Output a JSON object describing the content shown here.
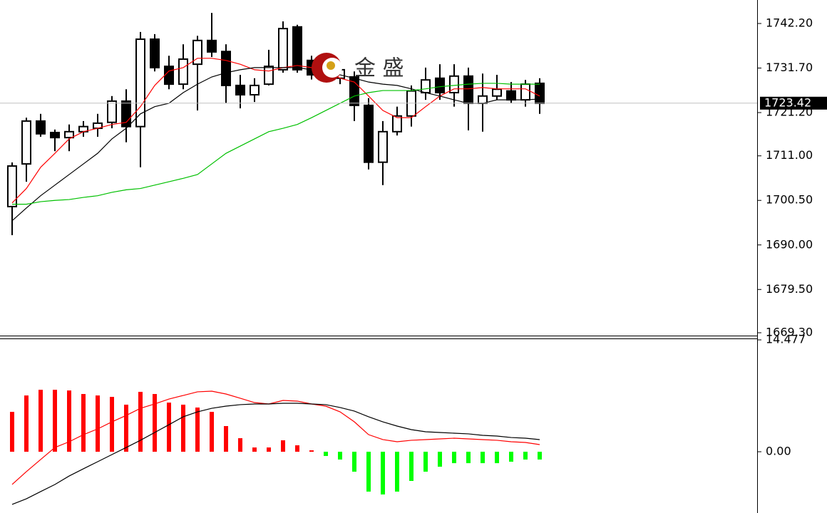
{
  "watermark": "金 盛",
  "chart_data": [
    {
      "type": "candlestick",
      "open": [
        1699.04,
        1709.1,
        1719.2,
        1716.5,
        1715.3,
        1716.7,
        1717.5,
        1718.9,
        1723.9,
        1717.9,
        1738.5,
        1732.1,
        1727.9,
        1732.6,
        1738.2,
        1735.6,
        1727.6,
        1725.4,
        1727.9,
        1731.3,
        1741.4,
        1733.5,
        1732.6,
        1729.3,
        1729.6,
        1722.9,
        1709.5,
        1716.7,
        1720.4,
        1725.9,
        1729.3,
        1725.9,
        1729.8,
        1723.4,
        1725.1,
        1726.3,
        1724.2,
        1728.1
      ],
      "high": [
        1709.45,
        1720.0,
        1720.9,
        1717.2,
        1718.4,
        1719.2,
        1720.9,
        1725.1,
        1726.7,
        1740.2,
        1739.7,
        1734.6,
        1737.3,
        1739.3,
        1744.7,
        1737.3,
        1730.1,
        1729.3,
        1736.0,
        1742.7,
        1741.9,
        1734.6,
        1734.3,
        1733.0,
        1730.9,
        1724.6,
        1719.2,
        1722.6,
        1727.6,
        1731.8,
        1732.6,
        1732.6,
        1731.8,
        1730.4,
        1730.1,
        1728.4,
        1728.9,
        1729.3
      ],
      "low": [
        1692.3,
        1704.9,
        1715.5,
        1712.1,
        1712.1,
        1715.5,
        1715.5,
        1717.5,
        1714.2,
        1708.3,
        1730.9,
        1726.7,
        1726.7,
        1721.7,
        1734.3,
        1723.4,
        1722.2,
        1723.7,
        1727.6,
        1730.6,
        1730.6,
        1729.0,
        1728.4,
        1727.9,
        1719.2,
        1707.8,
        1704.1,
        1715.8,
        1717.9,
        1724.2,
        1724.2,
        1722.6,
        1717.0,
        1716.7,
        1724.2,
        1723.4,
        1722.6,
        1720.9
      ],
      "close": [
        1708.6,
        1719.2,
        1716.2,
        1715.3,
        1716.7,
        1717.9,
        1718.7,
        1723.9,
        1717.9,
        1738.5,
        1731.8,
        1727.9,
        1733.8,
        1738.2,
        1735.5,
        1727.6,
        1725.4,
        1727.6,
        1732.1,
        1741.0,
        1731.3,
        1730.1,
        1729.3,
        1731.3,
        1722.9,
        1709.5,
        1716.7,
        1720.4,
        1726.3,
        1728.9,
        1725.9,
        1729.8,
        1723.4,
        1725.1,
        1726.7,
        1724.2,
        1727.9,
        1723.4
      ],
      "lines": [
        {
          "color": "#ff0000",
          "values": [
            1699.9,
            1703.3,
            1708.3,
            1711.6,
            1715.0,
            1716.7,
            1717.5,
            1718.4,
            1718.9,
            1722.6,
            1727.6,
            1731.0,
            1731.8,
            1734.0,
            1734.0,
            1733.5,
            1732.6,
            1731.3,
            1731.0,
            1731.8,
            1732.3,
            1731.8,
            1731.0,
            1729.3,
            1728.4,
            1725.1,
            1721.7,
            1720.0,
            1720.0,
            1722.6,
            1725.1,
            1726.8,
            1726.8,
            1727.1,
            1726.8,
            1726.8,
            1726.8,
            1725.1
          ]
        },
        {
          "color": "#000000",
          "values": [
            1695.7,
            1698.7,
            1701.6,
            1704.1,
            1706.6,
            1709.1,
            1711.6,
            1715.0,
            1717.5,
            1720.9,
            1722.6,
            1723.4,
            1725.9,
            1727.9,
            1729.6,
            1730.6,
            1731.3,
            1731.8,
            1731.8,
            1731.8,
            1731.8,
            1731.3,
            1731.0,
            1730.1,
            1729.3,
            1728.4,
            1727.9,
            1727.6,
            1726.8,
            1725.9,
            1725.1,
            1724.2,
            1723.4,
            1723.4,
            1724.2,
            1724.2,
            1724.2,
            1724.4
          ]
        },
        {
          "color": "#00c000",
          "values": [
            1699.6,
            1699.6,
            1700.2,
            1700.5,
            1700.7,
            1701.2,
            1701.6,
            1702.4,
            1703.0,
            1703.3,
            1704.1,
            1704.9,
            1705.7,
            1706.6,
            1709.1,
            1711.6,
            1713.3,
            1715.0,
            1716.7,
            1717.5,
            1718.4,
            1720.0,
            1721.7,
            1723.4,
            1725.1,
            1725.9,
            1726.4,
            1726.4,
            1726.4,
            1726.8,
            1727.3,
            1727.6,
            1727.9,
            1728.1,
            1728.1,
            1727.9,
            1727.9,
            1727.9
          ]
        }
      ],
      "last_price": 1723.42,
      "ylim": [
        1668.46,
        1747.74
      ],
      "yticks": [
        {
          "value": 1742.2,
          "label": "1742.20"
        },
        {
          "value": 1731.7,
          "label": "1731.70"
        },
        {
          "value": 1721.2,
          "label": "1721.20"
        },
        {
          "value": 1711,
          "label": "1711.00"
        },
        {
          "value": 1700.5,
          "label": "1700.50"
        },
        {
          "value": 1690,
          "label": "1690.00"
        },
        {
          "value": 1679.5,
          "label": "1679.50"
        },
        {
          "value": 1669.3,
          "label": "1669.30"
        }
      ]
    },
    {
      "type": "macd",
      "values": [
        5.16,
        7.28,
        8.02,
        8.02,
        7.93,
        7.47,
        7.28,
        7.1,
        6.09,
        7.75,
        7.47,
        6.36,
        6.09,
        5.72,
        5.16,
        3.32,
        1.75,
        0.55,
        0.55,
        1.48,
        0.83,
        0.18,
        -0.55,
        -1.01,
        -2.58,
        -5.16,
        -5.53,
        -5.16,
        -3.78,
        -2.58,
        -1.94,
        -1.48,
        -1.48,
        -1.48,
        -1.48,
        -1.29,
        -1.01,
        -1.01
      ],
      "up_color": "#ff0000",
      "down_color": "#00ff00",
      "lines": [
        {
          "color": "#ff0000",
          "values": [
            -4.24,
            -2.58,
            -1.01,
            0.55,
            1.29,
            2.21,
            2.95,
            3.87,
            4.7,
            5.62,
            6.18,
            6.82,
            7.28,
            7.75,
            7.84,
            7.47,
            6.92,
            6.36,
            6.18,
            6.64,
            6.55,
            6.18,
            5.9,
            5.16,
            3.87,
            2.21,
            1.57,
            1.29,
            1.48,
            1.57,
            1.66,
            1.75,
            1.66,
            1.57,
            1.48,
            1.29,
            1.2,
            0.92
          ]
        },
        {
          "color": "#000000",
          "values": [
            -6.82,
            -6.09,
            -5.16,
            -4.24,
            -3.14,
            -2.21,
            -1.29,
            -0.37,
            0.55,
            1.48,
            2.49,
            3.5,
            4.52,
            5.16,
            5.62,
            5.9,
            6.09,
            6.18,
            6.18,
            6.27,
            6.27,
            6.18,
            6.09,
            5.72,
            5.26,
            4.52,
            3.87,
            3.32,
            2.86,
            2.58,
            2.49,
            2.4,
            2.31,
            2.12,
            2.03,
            1.84,
            1.75,
            1.57
          ]
        }
      ],
      "ylim": [
        -7.93,
        14.477
      ],
      "yticks": [
        14.477,
        {
          "value": 0,
          "label": "0.00"
        }
      ]
    }
  ]
}
